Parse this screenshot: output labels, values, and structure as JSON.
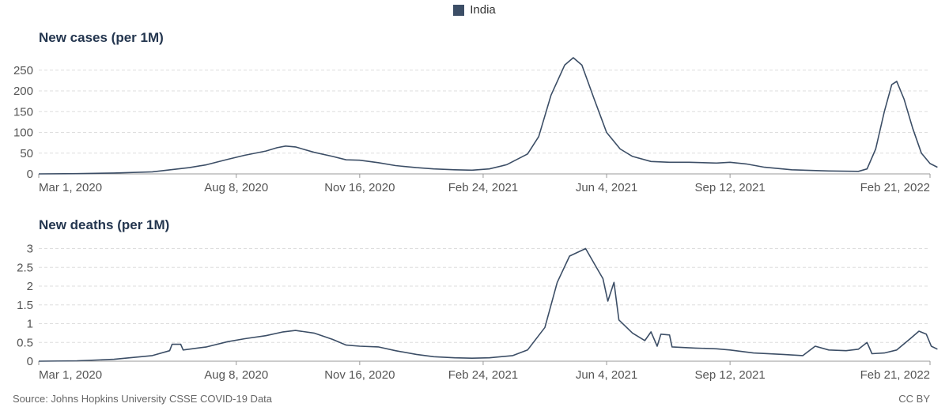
{
  "legend": {
    "label": "India",
    "color": "#3c4e66"
  },
  "footer": {
    "source": "Source: Johns Hopkins University CSSE COVID-19 Data",
    "license": "CC BY"
  },
  "chart_data": [
    {
      "type": "line",
      "title": "New cases (per 1M)",
      "xlabel": "",
      "ylabel": "",
      "ylim": [
        0,
        280
      ],
      "grid": true,
      "legend_position": "top-center",
      "x_ticks": [
        "Mar 1, 2020",
        "Aug 8, 2020",
        "Nov 16, 2020",
        "Feb 24, 2021",
        "Jun 4, 2021",
        "Sep 12, 2021",
        "Feb 21, 2022"
      ],
      "y_ticks": [
        "0",
        "50",
        "100",
        "150",
        "200",
        "250"
      ],
      "series": [
        {
          "name": "India",
          "color": "#3c4e66",
          "points": [
            [
              "2020-03-01",
              0
            ],
            [
              "2020-04-01",
              0.5
            ],
            [
              "2020-05-01",
              2
            ],
            [
              "2020-06-01",
              5
            ],
            [
              "2020-07-01",
              15
            ],
            [
              "2020-07-15",
              22
            ],
            [
              "2020-08-01",
              35
            ],
            [
              "2020-08-15",
              45
            ],
            [
              "2020-09-01",
              55
            ],
            [
              "2020-09-10",
              63
            ],
            [
              "2020-09-17",
              67
            ],
            [
              "2020-09-25",
              65
            ],
            [
              "2020-10-10",
              52
            ],
            [
              "2020-10-25",
              42
            ],
            [
              "2020-11-05",
              34
            ],
            [
              "2020-11-16",
              33
            ],
            [
              "2020-12-01",
              27
            ],
            [
              "2020-12-15",
              20
            ],
            [
              "2021-01-01",
              15
            ],
            [
              "2021-01-15",
              12
            ],
            [
              "2021-02-01",
              10
            ],
            [
              "2021-02-15",
              9
            ],
            [
              "2021-03-01",
              12
            ],
            [
              "2021-03-15",
              22
            ],
            [
              "2021-04-01",
              48
            ],
            [
              "2021-04-10",
              90
            ],
            [
              "2021-04-20",
              190
            ],
            [
              "2021-05-01",
              262
            ],
            [
              "2021-05-08",
              280
            ],
            [
              "2021-05-15",
              262
            ],
            [
              "2021-05-25",
              180
            ],
            [
              "2021-06-04",
              100
            ],
            [
              "2021-06-15",
              60
            ],
            [
              "2021-06-25",
              42
            ],
            [
              "2021-07-10",
              30
            ],
            [
              "2021-07-25",
              28
            ],
            [
              "2021-08-10",
              28
            ],
            [
              "2021-09-01",
              26
            ],
            [
              "2021-09-12",
              28
            ],
            [
              "2021-09-25",
              24
            ],
            [
              "2021-10-10",
              16
            ],
            [
              "2021-11-01",
              10
            ],
            [
              "2021-12-01",
              7
            ],
            [
              "2021-12-25",
              6
            ],
            [
              "2022-01-01",
              12
            ],
            [
              "2022-01-08",
              60
            ],
            [
              "2022-01-15",
              150
            ],
            [
              "2022-01-21",
              215
            ],
            [
              "2022-01-25",
              223
            ],
            [
              "2022-01-31",
              180
            ],
            [
              "2022-02-07",
              110
            ],
            [
              "2022-02-14",
              50
            ],
            [
              "2022-02-21",
              25
            ],
            [
              "2022-02-27",
              16
            ]
          ]
        }
      ]
    },
    {
      "type": "line",
      "title": "New deaths (per 1M)",
      "xlabel": "",
      "ylabel": "",
      "ylim": [
        0,
        3.2
      ],
      "grid": true,
      "legend_position": "top-center",
      "x_ticks": [
        "Mar 1, 2020",
        "Aug 8, 2020",
        "Nov 16, 2020",
        "Feb 24, 2021",
        "Jun 4, 2021",
        "Sep 12, 2021",
        "Feb 21, 2022"
      ],
      "y_ticks": [
        "0",
        "0.5",
        "1",
        "1.5",
        "2",
        "2.5",
        "3"
      ],
      "series": [
        {
          "name": "India",
          "color": "#3c4e66",
          "points": [
            [
              "2020-03-01",
              0
            ],
            [
              "2020-04-01",
              0.01
            ],
            [
              "2020-05-01",
              0.05
            ],
            [
              "2020-06-01",
              0.15
            ],
            [
              "2020-06-15",
              0.28
            ],
            [
              "2020-06-17",
              0.45
            ],
            [
              "2020-06-24",
              0.45
            ],
            [
              "2020-06-26",
              0.3
            ],
            [
              "2020-07-15",
              0.38
            ],
            [
              "2020-08-01",
              0.52
            ],
            [
              "2020-08-15",
              0.6
            ],
            [
              "2020-09-01",
              0.68
            ],
            [
              "2020-09-15",
              0.78
            ],
            [
              "2020-09-25",
              0.82
            ],
            [
              "2020-10-10",
              0.75
            ],
            [
              "2020-10-25",
              0.58
            ],
            [
              "2020-11-05",
              0.43
            ],
            [
              "2020-11-16",
              0.4
            ],
            [
              "2020-12-01",
              0.38
            ],
            [
              "2020-12-15",
              0.28
            ],
            [
              "2021-01-01",
              0.18
            ],
            [
              "2021-01-15",
              0.12
            ],
            [
              "2021-02-01",
              0.09
            ],
            [
              "2021-02-15",
              0.08
            ],
            [
              "2021-03-01",
              0.09
            ],
            [
              "2021-03-20",
              0.15
            ],
            [
              "2021-04-01",
              0.3
            ],
            [
              "2021-04-15",
              0.9
            ],
            [
              "2021-04-25",
              2.1
            ],
            [
              "2021-05-05",
              2.8
            ],
            [
              "2021-05-18",
              3.0
            ],
            [
              "2021-05-25",
              2.6
            ],
            [
              "2021-06-01",
              2.2
            ],
            [
              "2021-06-05",
              1.6
            ],
            [
              "2021-06-10",
              2.1
            ],
            [
              "2021-06-14",
              1.1
            ],
            [
              "2021-06-25",
              0.75
            ],
            [
              "2021-07-05",
              0.55
            ],
            [
              "2021-07-10",
              0.78
            ],
            [
              "2021-07-15",
              0.4
            ],
            [
              "2021-07-18",
              0.72
            ],
            [
              "2021-07-25",
              0.7
            ],
            [
              "2021-07-27",
              0.38
            ],
            [
              "2021-08-15",
              0.35
            ],
            [
              "2021-09-01",
              0.33
            ],
            [
              "2021-09-12",
              0.3
            ],
            [
              "2021-10-01",
              0.22
            ],
            [
              "2021-10-25",
              0.18
            ],
            [
              "2021-11-10",
              0.15
            ],
            [
              "2021-11-20",
              0.4
            ],
            [
              "2021-12-01",
              0.3
            ],
            [
              "2021-12-15",
              0.28
            ],
            [
              "2021-12-25",
              0.32
            ],
            [
              "2022-01-01",
              0.5
            ],
            [
              "2022-01-05",
              0.2
            ],
            [
              "2022-01-15",
              0.22
            ],
            [
              "2022-01-25",
              0.3
            ],
            [
              "2022-02-05",
              0.6
            ],
            [
              "2022-02-12",
              0.8
            ],
            [
              "2022-02-18",
              0.72
            ],
            [
              "2022-02-22",
              0.4
            ],
            [
              "2022-02-27",
              0.32
            ]
          ]
        }
      ]
    }
  ]
}
